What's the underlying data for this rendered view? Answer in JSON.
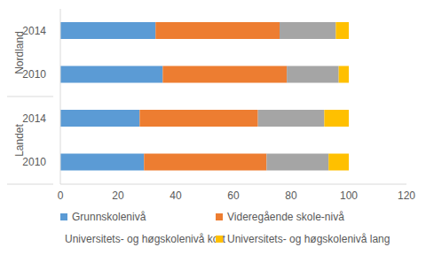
{
  "chart_data": {
    "type": "bar",
    "orientation": "horizontal",
    "stacked": true,
    "grid": false,
    "legend": "bottom",
    "categories": [
      "2014",
      "2010",
      "2014",
      "2010"
    ],
    "groups": [
      "Nordland",
      "Nordland",
      "Landet",
      "Landet"
    ],
    "series": [
      {
        "name": "Grunnskolenivå",
        "color": "#5b9bd5",
        "values": [
          33,
          35.5,
          27.5,
          29
        ]
      },
      {
        "name": "Videregående skole-nivå",
        "color": "#ed7d31",
        "values": [
          43,
          43,
          41,
          42.5
        ]
      },
      {
        "name": "Universitets- og høgskolenivå kort",
        "color": "#a5a5a5",
        "values": [
          19.5,
          18,
          23,
          21.5
        ]
      },
      {
        "name": "Universitets- og høgskolenivå lang",
        "color": "#ffc000",
        "values": [
          4.5,
          3.5,
          8.5,
          7
        ]
      }
    ],
    "xlim": [
      0,
      120
    ],
    "xticks": [
      0,
      20,
      40,
      60,
      80,
      100,
      120
    ]
  }
}
